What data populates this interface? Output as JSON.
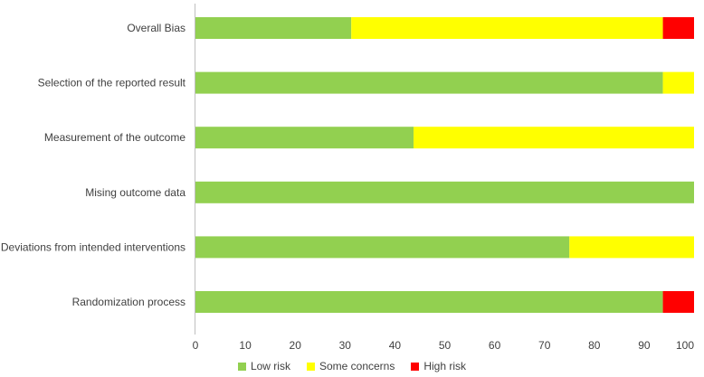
{
  "chart_data": {
    "type": "bar",
    "orientation": "horizontal",
    "stacked": true,
    "categories": [
      "Overall Bias",
      "Selection of the reported result",
      "Measurement of the outcome",
      "Mising outcome data",
      "Deviations from intended interventions",
      "Randomization process"
    ],
    "series": [
      {
        "name": "Low risk",
        "color": "#92d050",
        "values": [
          31.25,
          93.75,
          43.75,
          100,
          75,
          93.75
        ]
      },
      {
        "name": "Some concerns",
        "color": "#ffff00",
        "values": [
          62.5,
          6.25,
          56.25,
          0,
          25,
          0
        ]
      },
      {
        "name": "High risk",
        "color": "#ff0000",
        "values": [
          6.25,
          0,
          0,
          0,
          0,
          6.25
        ]
      }
    ],
    "xlim": [
      0,
      100
    ],
    "xticks": [
      "0",
      "10",
      "20",
      "30",
      "40",
      "50",
      "60",
      "70",
      "80",
      "90",
      "100"
    ],
    "title": "",
    "xlabel": "",
    "ylabel": "",
    "grid": false,
    "legend_position": "bottom"
  }
}
